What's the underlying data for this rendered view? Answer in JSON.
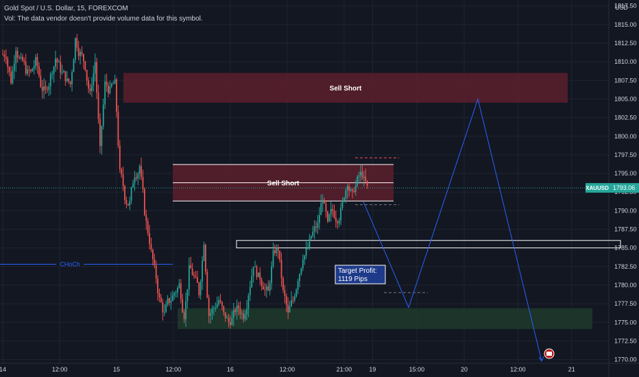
{
  "header": {
    "title": "Gold Spot / U.S. Dollar, 15, FOREXCOM",
    "volume_note": "Vol: The data vendor doesn't provide volume data for this symbol."
  },
  "colors": {
    "background": "#131722",
    "grid": "#1f2433",
    "up": "#26a69a",
    "down": "#ef5350",
    "sell_zone": "#5c1f2b",
    "buy_zone": "#1e3a2a",
    "projection": "#2962ff",
    "price_tag": "#26a69a"
  },
  "chart_data": {
    "type": "candlestick",
    "symbol": "XAUUSD",
    "current_price": "1793.06",
    "currency_label": "USD",
    "ylim": [
      1769.5,
      1818.3
    ],
    "y_ticks": [
      "1770.00",
      "1772.50",
      "1775.00",
      "1777.50",
      "1780.00",
      "1782.50",
      "1785.00",
      "1787.50",
      "1790.00",
      "1792.50",
      "1795.00",
      "1797.50",
      "1800.00",
      "1802.50",
      "1805.00",
      "1807.50",
      "1810.00",
      "1812.50",
      "1815.00",
      "1817.50"
    ],
    "x_ticks": [
      "14",
      "12:00",
      "15",
      "12:00",
      "16",
      "12:00",
      "21:00",
      "19",
      "15:00",
      "20",
      "12:00",
      "21"
    ],
    "x_tick_positions_index": [
      0,
      36,
      72,
      108,
      144,
      180,
      216,
      234,
      262,
      292,
      326,
      360
    ],
    "close_path": [
      1811,
      1807.5,
      1812,
      1810,
      1809,
      1808.5,
      1810,
      1807,
      1806,
      1808,
      1810.5,
      1809,
      1808,
      1807,
      1813,
      1811,
      1809.5,
      1805.5,
      1810,
      1798,
      1807,
      1806,
      1807,
      1795,
      1792,
      1791,
      1795,
      1796,
      1790,
      1786,
      1782,
      1778,
      1776,
      1778,
      1779,
      1780,
      1776,
      1782,
      1781,
      1779,
      1786,
      1776,
      1777,
      1778,
      1776,
      1775,
      1776,
      1777,
      1776,
      1779,
      1783,
      1781,
      1780,
      1779,
      1784,
      1785,
      1779,
      1776,
      1778,
      1781,
      1784,
      1785,
      1787,
      1788,
      1792,
      1788,
      1790,
      1789,
      1791,
      1794,
      1792,
      1794,
      1795,
      1793
    ],
    "annotations": {
      "zones": [
        {
          "label": "Sell Short",
          "top": 1808.5,
          "bottom": 1804.5,
          "type": "sell"
        },
        {
          "label": "Sell Short",
          "top": 1796.2,
          "bottom": 1791.3,
          "type": "sell"
        },
        {
          "label": "",
          "top": 1776.9,
          "bottom": 1774.1,
          "type": "buy"
        }
      ],
      "choch_label": "CHoCh",
      "choch_level": 1782.8,
      "target_label_1": "Target Profit:",
      "target_label_2": "1119 Pips",
      "open_rect_top": 1786.0,
      "open_rect_bottom": 1785.0
    },
    "projection_path": [
      {
        "x": "19",
        "y": 1791.2
      },
      {
        "x": "15:00",
        "y": 1777.0
      },
      {
        "x": "20",
        "y": 1805.0
      },
      {
        "x": "21",
        "y": 1769.8
      }
    ]
  }
}
